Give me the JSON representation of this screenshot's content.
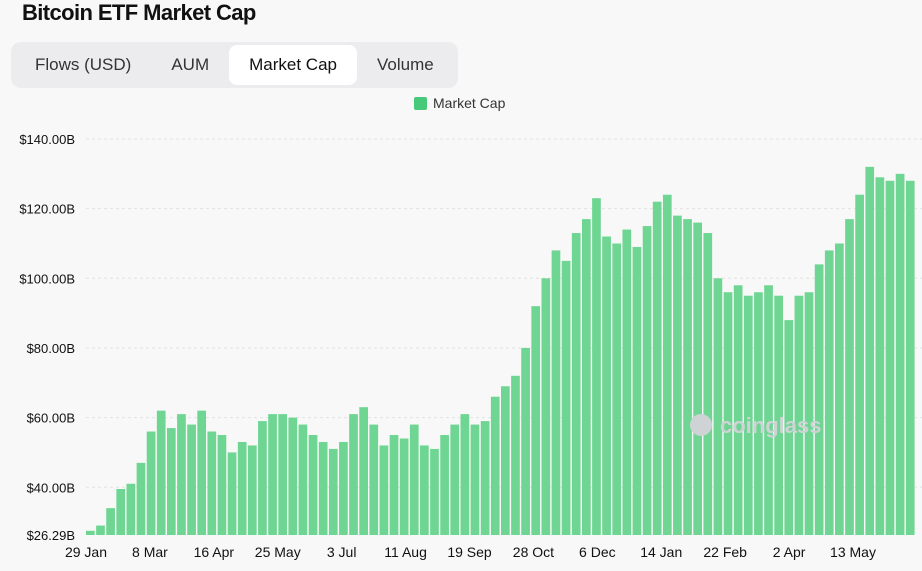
{
  "title": "Bitcoin ETF Market Cap",
  "tabs": [
    {
      "label": "Flows (USD)",
      "active": false
    },
    {
      "label": "AUM",
      "active": false
    },
    {
      "label": "Market Cap",
      "active": true
    },
    {
      "label": "Volume",
      "active": false
    }
  ],
  "watermark": "coinglass",
  "colors": {
    "bar": "#6ed692",
    "legend": "#46c97b",
    "grid": "#e2e2e2"
  },
  "chart_data": {
    "type": "bar",
    "legend": [
      "Market Cap"
    ],
    "legend_position": "top-center",
    "grid": true,
    "ylim": [
      26.29,
      140
    ],
    "y_ticks": [
      {
        "value": 26.29,
        "label": "$26.29B"
      },
      {
        "value": 40,
        "label": "$40.00B"
      },
      {
        "value": 60,
        "label": "$60.00B"
      },
      {
        "value": 80,
        "label": "$80.00B"
      },
      {
        "value": 100,
        "label": "$100.00B"
      },
      {
        "value": 120,
        "label": "$120.00B"
      },
      {
        "value": 140,
        "label": "$140.00B"
      }
    ],
    "x_ticks": [
      "29 Jan",
      "8 Mar",
      "16 Apr",
      "25 May",
      "3 Jul",
      "11 Aug",
      "19 Sep",
      "28 Oct",
      "6 Dec",
      "14 Jan",
      "22 Feb",
      "2 Apr",
      "13 May"
    ],
    "series": [
      {
        "name": "Market Cap",
        "points": [
          [
            "29 Jan",
            27.5
          ],
          [
            "4 Feb",
            29
          ],
          [
            "10 Feb",
            34
          ],
          [
            "16 Feb",
            39.5
          ],
          [
            "22 Feb",
            41
          ],
          [
            "1 Mar",
            47
          ],
          [
            "8 Mar",
            56
          ],
          [
            "14 Mar",
            62
          ],
          [
            "20 Mar",
            57
          ],
          [
            "26 Mar",
            61
          ],
          [
            "1 Apr",
            58
          ],
          [
            "8 Apr",
            62
          ],
          [
            "16 Apr",
            56
          ],
          [
            "22 Apr",
            55
          ],
          [
            "29 Apr",
            50
          ],
          [
            "6 May",
            53
          ],
          [
            "12 May",
            52
          ],
          [
            "18 May",
            59
          ],
          [
            "25 May",
            61
          ],
          [
            "1 Jun",
            61
          ],
          [
            "8 Jun",
            60
          ],
          [
            "15 Jun",
            58
          ],
          [
            "22 Jun",
            55
          ],
          [
            "29 Jun",
            53
          ],
          [
            "3 Jul",
            51
          ],
          [
            "10 Jul",
            53
          ],
          [
            "17 Jul",
            61
          ],
          [
            "24 Jul",
            63
          ],
          [
            "31 Jul",
            58
          ],
          [
            "6 Aug",
            52
          ],
          [
            "11 Aug",
            55
          ],
          [
            "18 Aug",
            54
          ],
          [
            "25 Aug",
            58
          ],
          [
            "1 Sep",
            52
          ],
          [
            "8 Sep",
            51
          ],
          [
            "15 Sep",
            55
          ],
          [
            "19 Sep",
            58
          ],
          [
            "26 Sep",
            61
          ],
          [
            "3 Oct",
            58
          ],
          [
            "10 Oct",
            59
          ],
          [
            "17 Oct",
            66
          ],
          [
            "24 Oct",
            69
          ],
          [
            "28 Oct",
            72
          ],
          [
            "4 Nov",
            80
          ],
          [
            "9 Nov",
            92
          ],
          [
            "15 Nov",
            100
          ],
          [
            "22 Nov",
            108
          ],
          [
            "29 Nov",
            105
          ],
          [
            "6 Dec",
            113
          ],
          [
            "12 Dec",
            117
          ],
          [
            "17 Dec",
            123
          ],
          [
            "22 Dec",
            112
          ],
          [
            "28 Dec",
            110
          ],
          [
            "4 Jan",
            114
          ],
          [
            "10 Jan",
            109
          ],
          [
            "14 Jan",
            115
          ],
          [
            "20 Jan",
            122
          ],
          [
            "26 Jan",
            124
          ],
          [
            "1 Feb",
            118
          ],
          [
            "7 Feb",
            117
          ],
          [
            "13 Feb",
            116
          ],
          [
            "19 Feb",
            113
          ],
          [
            "22 Feb",
            100
          ],
          [
            "28 Feb",
            96
          ],
          [
            "6 Mar",
            98
          ],
          [
            "12 Mar",
            95
          ],
          [
            "18 Mar",
            96
          ],
          [
            "24 Mar",
            98
          ],
          [
            "2 Apr",
            95
          ],
          [
            "8 Apr",
            88
          ],
          [
            "14 Apr",
            95
          ],
          [
            "20 Apr",
            96
          ],
          [
            "26 Apr",
            104
          ],
          [
            "3 May",
            108
          ],
          [
            "9 May",
            110
          ],
          [
            "13 May",
            117
          ],
          [
            "19 May",
            124
          ],
          [
            "24 May",
            132
          ],
          [
            "30 May",
            129
          ],
          [
            "5 Jun",
            128
          ],
          [
            "11 Jun",
            130
          ],
          [
            "16 Jun",
            128
          ]
        ]
      }
    ]
  }
}
